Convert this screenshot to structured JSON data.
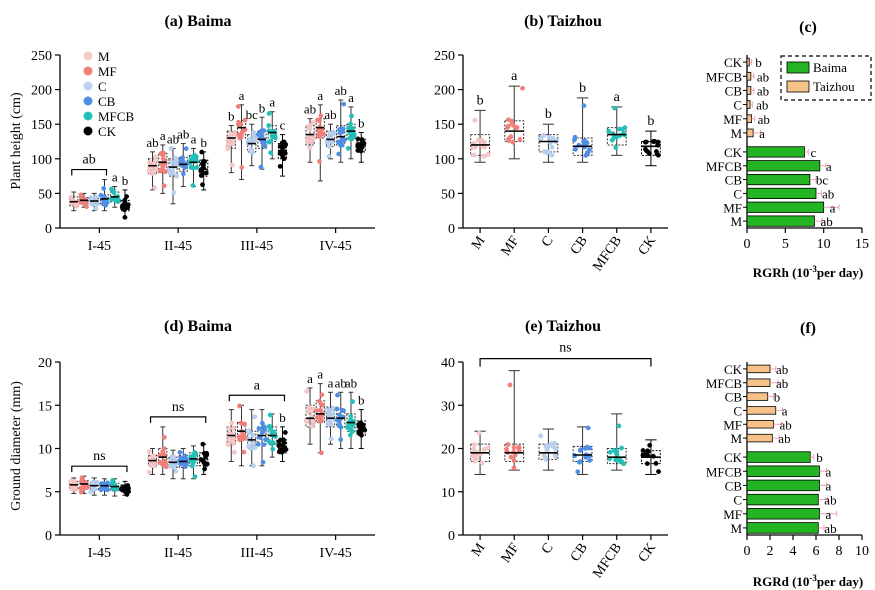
{
  "figure": {
    "colors": {
      "M": "#f7c9c9",
      "MF": "#ef7f78",
      "C": "#bcd2ee",
      "CB": "#4f8ee6",
      "MFCB": "#22c0b8",
      "CK": "#000000",
      "Baima": "#22b422",
      "Taizhou": "#f6c28a"
    }
  },
  "chart_data": [
    {
      "panel": "a",
      "type": "box",
      "title": "(a) Baima",
      "ylabel": "Plant height (cm)",
      "ylim": [
        0,
        250
      ],
      "yticks": [
        0,
        50,
        100,
        150,
        200,
        250
      ],
      "categories": [
        "I-45",
        "II-45",
        "III-45",
        "IV-45"
      ],
      "legend": [
        "M",
        "MF",
        "C",
        "CB",
        "MFCB",
        "CK"
      ],
      "series": [
        {
          "name": "M",
          "boxes": [
            {
              "min": 25,
              "q1": 32,
              "median": 38,
              "q3": 45,
              "max": 52,
              "sig": ""
            },
            {
              "min": 55,
              "q1": 78,
              "median": 90,
              "q3": 100,
              "max": 110,
              "sig": "ab"
            },
            {
              "min": 80,
              "q1": 115,
              "median": 130,
              "q3": 140,
              "max": 148,
              "sig": "b"
            },
            {
              "min": 95,
              "q1": 120,
              "median": 135,
              "q3": 148,
              "max": 158,
              "sig": "ab"
            }
          ]
        },
        {
          "name": "MF",
          "boxes": [
            {
              "min": 30,
              "q1": 35,
              "median": 40,
              "q3": 44,
              "max": 50,
              "sig": ""
            },
            {
              "min": 50,
              "q1": 80,
              "median": 95,
              "q3": 108,
              "max": 120,
              "sig": "a"
            },
            {
              "min": 70,
              "q1": 130,
              "median": 145,
              "q3": 155,
              "max": 178,
              "sig": "a"
            },
            {
              "min": 68,
              "q1": 130,
              "median": 145,
              "q3": 158,
              "max": 178,
              "sig": "a"
            }
          ]
        },
        {
          "name": "C",
          "boxes": [
            {
              "min": 25,
              "q1": 34,
              "median": 39,
              "q3": 43,
              "max": 50,
              "sig": ""
            },
            {
              "min": 35,
              "q1": 75,
              "median": 88,
              "q3": 100,
              "max": 115,
              "sig": "ab"
            },
            {
              "min": 90,
              "q1": 110,
              "median": 122,
              "q3": 135,
              "max": 150,
              "sig": "bc"
            },
            {
              "min": 100,
              "q1": 118,
              "median": 128,
              "q3": 140,
              "max": 150,
              "sig": "ab"
            }
          ]
        },
        {
          "name": "CB",
          "boxes": [
            {
              "min": 25,
              "q1": 35,
              "median": 42,
              "q3": 48,
              "max": 70,
              "sig": ""
            },
            {
              "min": 60,
              "q1": 82,
              "median": 92,
              "q3": 102,
              "max": 122,
              "sig": "ab"
            },
            {
              "min": 85,
              "q1": 115,
              "median": 128,
              "q3": 140,
              "max": 160,
              "sig": "b"
            },
            {
              "min": 95,
              "q1": 120,
              "median": 132,
              "q3": 148,
              "max": 185,
              "sig": "ab"
            }
          ]
        },
        {
          "name": "MFCB",
          "boxes": [
            {
              "min": 30,
              "q1": 38,
              "median": 45,
              "q3": 52,
              "max": 60,
              "sig": "a"
            },
            {
              "min": 60,
              "q1": 85,
              "median": 95,
              "q3": 105,
              "max": 115,
              "sig": "a"
            },
            {
              "min": 100,
              "q1": 125,
              "median": 138,
              "q3": 148,
              "max": 168,
              "sig": "a"
            },
            {
              "min": 100,
              "q1": 128,
              "median": 140,
              "q3": 150,
              "max": 175,
              "sig": "a"
            }
          ]
        },
        {
          "name": "CK",
          "boxes": [
            {
              "min": 15,
              "q1": 25,
              "median": 33,
              "q3": 40,
              "max": 55,
              "sig": "b"
            },
            {
              "min": 55,
              "q1": 75,
              "median": 85,
              "q3": 98,
              "max": 110,
              "sig": "b"
            },
            {
              "min": 75,
              "q1": 100,
              "median": 112,
              "q3": 122,
              "max": 135,
              "sig": "c"
            },
            {
              "min": 95,
              "q1": 110,
              "median": 120,
              "q3": 128,
              "max": 138,
              "sig": "b"
            }
          ]
        }
      ],
      "brackets": [
        {
          "label": "ab",
          "group": "I-45",
          "from": "M",
          "to": "CB"
        }
      ]
    },
    {
      "panel": "b",
      "type": "box",
      "title": "(b) Taizhou",
      "ylim": [
        0,
        250
      ],
      "yticks": [
        0,
        50,
        100,
        150,
        200,
        250
      ],
      "categories": [
        "M",
        "MF",
        "C",
        "CB",
        "MFCB",
        "CK"
      ],
      "boxes": [
        {
          "name": "M",
          "min": 95,
          "q1": 105,
          "median": 120,
          "q3": 135,
          "max": 170,
          "sig": "b"
        },
        {
          "name": "MF",
          "min": 100,
          "q1": 125,
          "median": 140,
          "q3": 155,
          "max": 205,
          "sig": "a"
        },
        {
          "name": "C",
          "min": 95,
          "q1": 110,
          "median": 125,
          "q3": 135,
          "max": 150,
          "sig": "b"
        },
        {
          "name": "CB",
          "min": 95,
          "q1": 105,
          "median": 118,
          "q3": 130,
          "max": 188,
          "sig": "b"
        },
        {
          "name": "MFCB",
          "min": 105,
          "q1": 120,
          "median": 135,
          "q3": 145,
          "max": 175,
          "sig": "a"
        },
        {
          "name": "CK",
          "min": 90,
          "q1": 105,
          "median": 118,
          "q3": 125,
          "max": 140,
          "sig": "b"
        }
      ]
    },
    {
      "panel": "c",
      "type": "bar",
      "title": "(c)",
      "xlabel_main": "RGRh (10",
      "xlabel_sup": "-3",
      "xlabel_rest": "per day)",
      "xlim": [
        0,
        15
      ],
      "xticks": [
        0,
        5,
        10,
        15
      ],
      "categories": [
        "CK",
        "MFCB",
        "CB",
        "C",
        "MF",
        "M"
      ],
      "legend": [
        "Baima",
        "Taizhou"
      ],
      "series": [
        {
          "name": "Taizhou",
          "values": [
            0.3,
            0.5,
            0.5,
            0.4,
            0.6,
            0.8
          ],
          "errors": [
            0.3,
            0.4,
            0.4,
            0.3,
            0.4,
            1.0
          ],
          "sig": [
            "b",
            "ab",
            "ab",
            "ab",
            "ab",
            "a"
          ]
        },
        {
          "name": "Baima",
          "values": [
            7.5,
            9.5,
            8.2,
            9.0,
            10.0,
            8.8
          ],
          "errors": [
            0.5,
            0.8,
            0.8,
            0.7,
            2.0,
            1.0
          ],
          "sig": [
            "c",
            "a",
            "bc",
            "ab",
            "a",
            "ab"
          ]
        }
      ]
    },
    {
      "panel": "d",
      "type": "box",
      "title": "(d) Baima",
      "ylabel": "Ground diameter (mm)",
      "ylim": [
        0,
        20
      ],
      "yticks": [
        0,
        5,
        10,
        15,
        20
      ],
      "categories": [
        "I-45",
        "II-45",
        "III-45",
        "IV-45"
      ],
      "series": [
        {
          "name": "M",
          "boxes": [
            {
              "min": 4.8,
              "q1": 5.3,
              "median": 5.8,
              "q3": 6.2,
              "max": 6.6,
              "sig": ""
            },
            {
              "min": 7.0,
              "q1": 8.0,
              "median": 8.6,
              "q3": 9.2,
              "max": 10.0,
              "sig": ""
            },
            {
              "min": 8.5,
              "q1": 10.5,
              "median": 11.5,
              "q3": 12.5,
              "max": 14.5,
              "sig": ""
            },
            {
              "min": 10.5,
              "q1": 12.5,
              "median": 13.5,
              "q3": 15.0,
              "max": 17.0,
              "sig": "a"
            }
          ]
        },
        {
          "name": "MF",
          "boxes": [
            {
              "min": 4.8,
              "q1": 5.4,
              "median": 5.9,
              "q3": 6.3,
              "max": 6.8,
              "sig": ""
            },
            {
              "min": 7.0,
              "q1": 8.2,
              "median": 9.0,
              "q3": 10.0,
              "max": 12.5,
              "sig": ""
            },
            {
              "min": 8.0,
              "q1": 11.0,
              "median": 12.0,
              "q3": 13.0,
              "max": 15.0,
              "sig": ""
            },
            {
              "min": 9.5,
              "q1": 13.0,
              "median": 14.0,
              "q3": 15.5,
              "max": 17.5,
              "sig": "a"
            }
          ]
        },
        {
          "name": "C",
          "boxes": [
            {
              "min": 4.6,
              "q1": 5.2,
              "median": 5.7,
              "q3": 6.1,
              "max": 6.6,
              "sig": ""
            },
            {
              "min": 6.5,
              "q1": 7.8,
              "median": 8.4,
              "q3": 9.0,
              "max": 9.8,
              "sig": ""
            },
            {
              "min": 8.0,
              "q1": 10.0,
              "median": 11.0,
              "q3": 12.0,
              "max": 14.5,
              "sig": ""
            },
            {
              "min": 10.5,
              "q1": 12.5,
              "median": 13.5,
              "q3": 14.8,
              "max": 16.5,
              "sig": "a"
            }
          ]
        },
        {
          "name": "CB",
          "boxes": [
            {
              "min": 4.6,
              "q1": 5.2,
              "median": 5.7,
              "q3": 6.1,
              "max": 6.5,
              "sig": ""
            },
            {
              "min": 6.5,
              "q1": 7.8,
              "median": 8.5,
              "q3": 9.2,
              "max": 10.0,
              "sig": ""
            },
            {
              "min": 8.0,
              "q1": 10.5,
              "median": 11.5,
              "q3": 12.5,
              "max": 14.5,
              "sig": ""
            },
            {
              "min": 10.0,
              "q1": 12.5,
              "median": 13.5,
              "q3": 14.5,
              "max": 16.5,
              "sig": "ab"
            }
          ]
        },
        {
          "name": "MFCB",
          "boxes": [
            {
              "min": 4.5,
              "q1": 5.1,
              "median": 5.6,
              "q3": 6.0,
              "max": 6.5,
              "sig": ""
            },
            {
              "min": 6.5,
              "q1": 8.0,
              "median": 8.8,
              "q3": 9.5,
              "max": 10.3,
              "sig": ""
            },
            {
              "min": 9.0,
              "q1": 10.5,
              "median": 11.5,
              "q3": 12.5,
              "max": 14.0,
              "sig": ""
            },
            {
              "min": 10.0,
              "q1": 12.0,
              "median": 13.0,
              "q3": 14.0,
              "max": 16.5,
              "sig": "ab"
            }
          ]
        },
        {
          "name": "CK",
          "boxes": [
            {
              "min": 4.6,
              "q1": 5.0,
              "median": 5.4,
              "q3": 5.8,
              "max": 6.2,
              "sig": ""
            },
            {
              "min": 7.0,
              "q1": 8.0,
              "median": 8.8,
              "q3": 9.5,
              "max": 10.5,
              "sig": ""
            },
            {
              "min": 8.5,
              "q1": 9.5,
              "median": 10.0,
              "q3": 11.0,
              "max": 12.5,
              "sig": "b"
            },
            {
              "min": 10.0,
              "q1": 11.5,
              "median": 12.5,
              "q3": 13.2,
              "max": 14.5,
              "sig": "b"
            }
          ]
        }
      ],
      "brackets": [
        {
          "label": "ns",
          "group": "I-45",
          "from": "M",
          "to": "CK"
        },
        {
          "label": "ns",
          "group": "II-45",
          "from": "M",
          "to": "CK"
        },
        {
          "label": "a",
          "group": "III-45",
          "from": "M",
          "to": "CK"
        }
      ]
    },
    {
      "panel": "e",
      "type": "box",
      "title": "(e) Taizhou",
      "ylim": [
        0,
        40
      ],
      "yticks": [
        0,
        10,
        20,
        30,
        40
      ],
      "categories": [
        "M",
        "MF",
        "C",
        "CB",
        "MFCB",
        "CK"
      ],
      "boxes": [
        {
          "name": "M",
          "min": 14,
          "q1": 17,
          "median": 19,
          "q3": 21,
          "max": 24
        },
        {
          "name": "MF",
          "min": 15,
          "q1": 17,
          "median": 19,
          "q3": 21,
          "max": 38
        },
        {
          "name": "C",
          "min": 15,
          "q1": 17.5,
          "median": 19,
          "q3": 21,
          "max": 24.5
        },
        {
          "name": "CB",
          "min": 14,
          "q1": 17,
          "median": 18.5,
          "q3": 20.5,
          "max": 25
        },
        {
          "name": "MFCB",
          "min": 15,
          "q1": 16.5,
          "median": 18,
          "q3": 20,
          "max": 28
        },
        {
          "name": "CK",
          "min": 14,
          "q1": 16.5,
          "median": 18,
          "q3": 19.5,
          "max": 22
        }
      ],
      "brackets": [
        {
          "label": "ns",
          "from": "M",
          "to": "CK"
        }
      ]
    },
    {
      "panel": "f",
      "type": "bar",
      "title": "(f)",
      "xlabel_main": "RGRd (10",
      "xlabel_sup": "-3",
      "xlabel_rest": "per day)",
      "xlim": [
        0,
        10
      ],
      "xticks": [
        0,
        2,
        4,
        6,
        8,
        10
      ],
      "categories": [
        "CK",
        "MFCB",
        "CB",
        "C",
        "MF",
        "M"
      ],
      "series": [
        {
          "name": "Taizhou",
          "values": [
            2.0,
            2.0,
            1.8,
            2.5,
            2.3,
            2.2
          ],
          "errors": [
            0.5,
            0.7,
            0.5,
            0.6,
            0.7,
            0.6
          ],
          "sig": [
            "ab",
            "ab",
            "b",
            "a",
            "ab",
            "ab"
          ]
        },
        {
          "name": "Baima",
          "values": [
            5.5,
            6.3,
            6.3,
            6.2,
            6.3,
            6.2
          ],
          "errors": [
            0.3,
            0.6,
            0.6,
            0.8,
            1.5,
            0.5
          ],
          "sig": [
            "b",
            "a",
            "a",
            "ab",
            "a",
            "ab"
          ]
        }
      ]
    }
  ]
}
